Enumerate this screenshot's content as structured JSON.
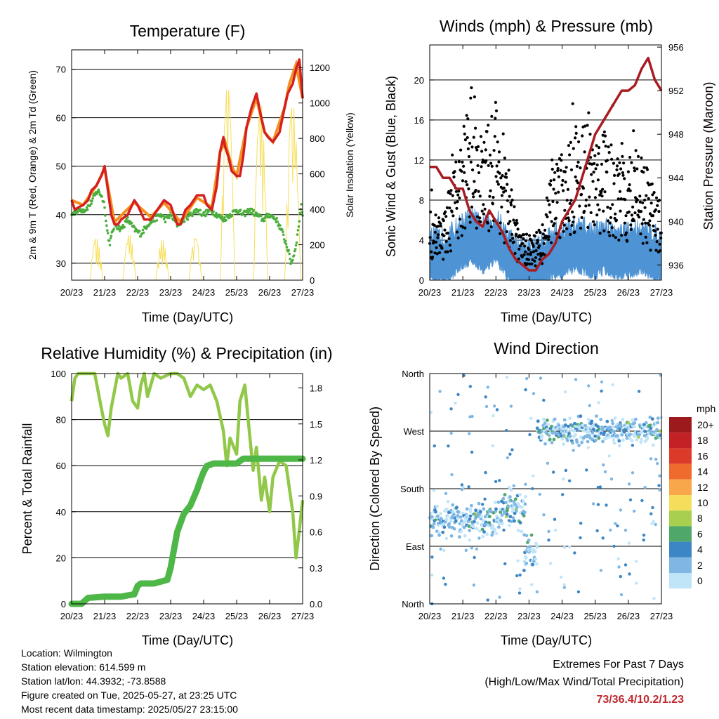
{
  "colors": {
    "temp_red": "#d42020",
    "temp_orange": "#f5901e",
    "dewpoint_green": "#4aae3c",
    "solar_yellow": "#f6df5a",
    "gust_black": "#000000",
    "wind_blue": "#4e93d4",
    "pressure_maroon": "#a81c22",
    "rh_lightgreen": "#92c84a",
    "precip_green": "#4fb748"
  },
  "time_ticks": [
    "20/23",
    "21/23",
    "22/23",
    "23/23",
    "24/23",
    "25/23",
    "26/23",
    "27/23"
  ],
  "info": {
    "location": "Location: Wilmington",
    "elevation": "Station elevation: 614.599 m",
    "latlon": "Station lat/lon: 44.3932; -73.8588",
    "created": "Figure created on Tue, 2025-05-27, at 23:25 UTC",
    "latest": "Most recent data timestamp: 2025/05/27 23:15:00"
  },
  "extremes": {
    "title": "Extremes For Past 7 Days",
    "subtitle": "(High/Low/Max Wind/Total Precipitation)",
    "values": "73/36.4/10.2/1.23"
  },
  "chart_data": [
    {
      "type": "line",
      "title": "Temperature (F)",
      "xlabel": "Time (Day/UTC)",
      "ylabel": "2m & 9m T (Red, Orange) & 2m Td (Green)",
      "y2label": "Solar Insolation (Yellow)",
      "ylim": [
        26.5,
        74
      ],
      "yticks": [
        30,
        40,
        50,
        60,
        70
      ],
      "y2lim": [
        0,
        1300
      ],
      "y2ticks": [
        0,
        200,
        400,
        600,
        800,
        1000,
        1200
      ],
      "xlim": [
        0,
        7
      ],
      "series": [
        {
          "key": "t2m",
          "x": [
            0,
            0.1,
            0.2,
            0.35,
            0.5,
            0.6,
            0.75,
            0.9,
            1.0,
            1.1,
            1.2,
            1.3,
            1.4,
            1.5,
            1.7,
            1.9,
            2.0,
            2.2,
            2.4,
            2.6,
            2.8,
            3.0,
            3.1,
            3.2,
            3.3,
            3.45,
            3.6,
            3.8,
            4.0,
            4.1,
            4.25,
            4.4,
            4.5,
            4.6,
            4.65,
            4.75,
            4.85,
            5.0,
            5.1,
            5.2,
            5.3,
            5.45,
            5.6,
            5.75,
            5.85,
            5.95,
            6.1,
            6.3,
            6.45,
            6.55,
            6.7,
            6.8,
            6.9,
            7.0
          ],
          "y": [
            43,
            41,
            41.5,
            42,
            43,
            45,
            46,
            48,
            50,
            45,
            40,
            38,
            38,
            39,
            40,
            43,
            42,
            39,
            39,
            41,
            43,
            42,
            40,
            38,
            38,
            41,
            42,
            44,
            44,
            42,
            41,
            46,
            53,
            56,
            54,
            52,
            49,
            48,
            48,
            52,
            58,
            62,
            65,
            60,
            57,
            56,
            55,
            57,
            62,
            65,
            67,
            70,
            72,
            64
          ]
        },
        {
          "key": "t9m",
          "x": [
            0,
            0.35,
            0.75,
            1.0,
            1.3,
            1.9,
            2.4,
            2.8,
            3.3,
            3.8,
            4.25,
            4.5,
            4.65,
            4.85,
            5.0,
            5.3,
            5.6,
            5.85,
            6.1,
            6.45,
            6.6,
            6.8,
            7.0
          ],
          "y": [
            43,
            42,
            46,
            49.5,
            38.5,
            42.5,
            39.5,
            42.5,
            38.5,
            43.5,
            41.5,
            53,
            55,
            50,
            48,
            58,
            64,
            57,
            55,
            62,
            67,
            71,
            64
          ]
        },
        {
          "key": "td2m",
          "x": [
            0,
            0.2,
            0.4,
            0.55,
            0.7,
            0.8,
            0.9,
            1.0,
            1.05,
            1.15,
            1.3,
            1.5,
            1.7,
            1.9,
            2.1,
            2.3,
            2.5,
            2.7,
            2.85,
            3.0,
            3.2,
            3.4,
            3.6,
            3.8,
            4.0,
            4.2,
            4.4,
            4.6,
            4.8,
            5.0,
            5.2,
            5.4,
            5.6,
            5.8,
            6.0,
            6.2,
            6.35,
            6.45,
            6.55,
            6.65,
            6.75,
            6.85,
            6.95,
            7.0
          ],
          "y": [
            40,
            41,
            41,
            42,
            44,
            45,
            44,
            42,
            38,
            34,
            38,
            37,
            39,
            37,
            36,
            38,
            39,
            40,
            39,
            40,
            38,
            39,
            40,
            41,
            40,
            41,
            40,
            39,
            40,
            41,
            40,
            41,
            40,
            39,
            40,
            39,
            37,
            35,
            33,
            30,
            32,
            36,
            42,
            40
          ]
        },
        {
          "key": "solar",
          "days": [
            {
              "peak": 240,
              "start": 0.55,
              "end": 0.95
            },
            {
              "peak": 260,
              "start": 1.55,
              "end": 1.95
            },
            {
              "peak": 230,
              "start": 2.55,
              "end": 2.95
            },
            {
              "peak": 240,
              "start": 3.55,
              "end": 3.95
            },
            {
              "peak": 1100,
              "start": 4.5,
              "end": 4.95
            },
            {
              "peak": 1010,
              "start": 5.5,
              "end": 5.95
            },
            {
              "peak": 1000,
              "start": 6.45,
              "end": 6.95
            }
          ]
        }
      ]
    },
    {
      "type": "scatter",
      "title": "Winds (mph) & Pressure (mb)",
      "xlabel": "Time (Day/UTC)",
      "ylabel": "Sonic Wind & Gust (Blue, Black)",
      "y2label": "Station Pressure (Maroon)",
      "ylim": [
        0,
        23.5
      ],
      "yticks": [
        0,
        4,
        8,
        12,
        16,
        20
      ],
      "y2lim": [
        934.6,
        956.2
      ],
      "y2ticks": [
        936,
        940,
        944,
        948,
        952,
        956
      ],
      "xlim": [
        0,
        7
      ],
      "gust_envelope": {
        "x": [
          0,
          0.5,
          1.0,
          1.3,
          1.6,
          2.0,
          2.4,
          2.8,
          3.1,
          3.4,
          3.7,
          4.0,
          4.3,
          4.6,
          5.0,
          5.3,
          5.6,
          6.0,
          6.3,
          6.6,
          7.0
        ],
        "mean": [
          4.5,
          4.5,
          10,
          13,
          9,
          12,
          6,
          3,
          3,
          3.5,
          8,
          9,
          10,
          11,
          9,
          10,
          8,
          8,
          9,
          7,
          5
        ]
      },
      "wind_envelope": {
        "x": [
          0,
          0.5,
          1.0,
          1.3,
          1.6,
          2.0,
          2.4,
          2.8,
          3.1,
          3.4,
          3.7,
          4.0,
          4.3,
          4.6,
          5.0,
          5.3,
          5.6,
          6.0,
          6.3,
          6.6,
          7.0
        ],
        "mean": [
          2,
          2,
          3.5,
          4,
          3,
          4,
          2,
          1,
          1,
          1.5,
          2.5,
          2.5,
          3,
          3,
          2.5,
          3,
          2.5,
          2.5,
          3,
          2.5,
          2
        ]
      },
      "pressure": {
        "x": [
          0,
          0.2,
          0.4,
          0.6,
          0.8,
          1.0,
          1.2,
          1.4,
          1.6,
          1.8,
          2.0,
          2.2,
          2.4,
          2.6,
          2.8,
          3.0,
          3.2,
          3.4,
          3.6,
          3.8,
          4.0,
          4.2,
          4.4,
          4.6,
          4.8,
          5.0,
          5.2,
          5.4,
          5.6,
          5.8,
          6.0,
          6.2,
          6.4,
          6.6,
          6.8,
          7.0
        ],
        "y": [
          945,
          945,
          944,
          944,
          943,
          943,
          941,
          940,
          939.5,
          941,
          940,
          939,
          937.5,
          936.5,
          936,
          935.5,
          935.5,
          936.5,
          937,
          938,
          940,
          941,
          942,
          944,
          946,
          948,
          949,
          950,
          951,
          952,
          952,
          952.5,
          954,
          955,
          953,
          952
        ]
      }
    },
    {
      "type": "line",
      "title": "Relative Humidity (%) & Precipitation (in)",
      "xlabel": "Time (Day/UTC)",
      "ylabel": "Percent & Total Rainfall",
      "ylim": [
        0,
        100
      ],
      "yticks": [
        0,
        20,
        40,
        60,
        80,
        100
      ],
      "y2lim": [
        0,
        1.92
      ],
      "y2ticks": [
        "0.0",
        "0.3",
        "0.6",
        "0.9",
        "1.2",
        "1.5",
        "1.8"
      ],
      "xlim": [
        0,
        7
      ],
      "series": [
        {
          "key": "rh",
          "x": [
            0,
            0.1,
            0.2,
            0.4,
            0.7,
            0.9,
            1.0,
            1.1,
            1.2,
            1.4,
            1.5,
            1.7,
            1.85,
            2.0,
            2.1,
            2.2,
            2.3,
            2.5,
            2.7,
            3.0,
            3.2,
            3.4,
            3.6,
            3.8,
            4.0,
            4.2,
            4.4,
            4.6,
            4.7,
            4.8,
            5.0,
            5.1,
            5.25,
            5.35,
            5.5,
            5.6,
            5.75,
            5.85,
            6.0,
            6.1,
            6.3,
            6.5,
            6.7,
            6.8,
            6.9,
            7.0
          ],
          "y": [
            88,
            98,
            100,
            100,
            100,
            85,
            78,
            73,
            85,
            100,
            98,
            100,
            88,
            85,
            95,
            100,
            90,
            100,
            98,
            100,
            100,
            98,
            90,
            95,
            93,
            95,
            88,
            75,
            60,
            72,
            65,
            88,
            95,
            80,
            58,
            68,
            45,
            55,
            40,
            55,
            62,
            60,
            40,
            20,
            32,
            45
          ]
        },
        {
          "key": "precip",
          "x": [
            0,
            0.3,
            0.5,
            1.0,
            1.5,
            1.9,
            2.0,
            2.1,
            2.5,
            2.9,
            3.0,
            3.1,
            3.2,
            3.4,
            3.6,
            3.8,
            3.9,
            4.0,
            4.1,
            4.2,
            4.3,
            4.4,
            5.0,
            5.2,
            6.0,
            7.0
          ],
          "y": [
            0,
            0,
            0.05,
            0.06,
            0.06,
            0.08,
            0.15,
            0.17,
            0.17,
            0.2,
            0.3,
            0.45,
            0.6,
            0.75,
            0.82,
            0.95,
            1.03,
            1.1,
            1.15,
            1.16,
            1.17,
            1.17,
            1.17,
            1.21,
            1.21,
            1.21
          ]
        }
      ]
    },
    {
      "type": "scatter",
      "title": "Wind Direction",
      "xlabel": "Time (Day/UTC)",
      "ylabel": "Direction (Colored By Speed)",
      "yticks": [
        "North",
        "East",
        "South",
        "West",
        "North"
      ],
      "ylim": [
        0,
        360
      ],
      "xlim": [
        0,
        7
      ],
      "clusters": [
        {
          "x0": 0,
          "x1": 2.15,
          "dir": 130,
          "spread": 25
        },
        {
          "x0": 2.15,
          "x1": 2.9,
          "dir": 150,
          "spread": 35
        },
        {
          "x0": 2.85,
          "x1": 3.25,
          "dir": 80,
          "spread": 25
        },
        {
          "x0": 3.25,
          "x1": 7.0,
          "dir": 270,
          "spread": 18
        }
      ],
      "legend": {
        "title": "mph",
        "labels": [
          "20+",
          "18",
          "16",
          "14",
          "12",
          "10",
          "8",
          "6",
          "4",
          "2",
          "0"
        ],
        "colors": [
          "#9c1a1c",
          "#c42127",
          "#dc3b2a",
          "#ef6a2d",
          "#f8a84b",
          "#f4de5c",
          "#a8cf4f",
          "#4fa86a",
          "#3d86c5",
          "#7fb7e3",
          "#c0e4f8"
        ]
      }
    }
  ]
}
